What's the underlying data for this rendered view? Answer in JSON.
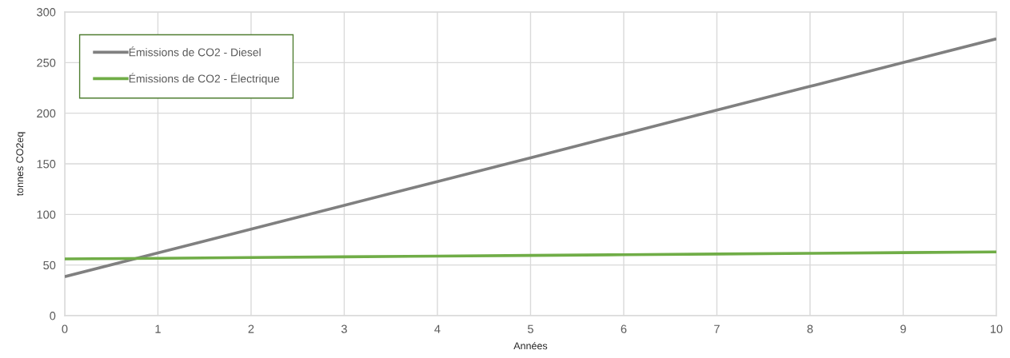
{
  "chart_data": {
    "type": "line",
    "xlabel": "Années",
    "ylabel": "tonnes CO2eq",
    "x": [
      0,
      1,
      2,
      3,
      4,
      5,
      6,
      7,
      8,
      9,
      10
    ],
    "series": [
      {
        "name": "Émissions de CO2 - Diesel",
        "color": "#808080",
        "values": [
          38.5,
          62,
          85.5,
          109,
          132.5,
          156,
          179.5,
          203,
          226.5,
          250,
          273.5
        ]
      },
      {
        "name": "Émissions de CO2 - Électrique",
        "color": "#70ad47",
        "values": [
          56,
          56.7,
          57.4,
          58.1,
          58.8,
          59.5,
          60.2,
          60.9,
          61.6,
          62.3,
          63
        ]
      }
    ],
    "xlim": [
      0,
      10
    ],
    "xticks": [
      0,
      1,
      2,
      3,
      4,
      5,
      6,
      7,
      8,
      9,
      10
    ],
    "ylim": [
      0,
      300
    ],
    "yticks": [
      0,
      50,
      100,
      150,
      200,
      250,
      300
    ],
    "grid": true,
    "legend": "top left",
    "line_style": "solid"
  }
}
